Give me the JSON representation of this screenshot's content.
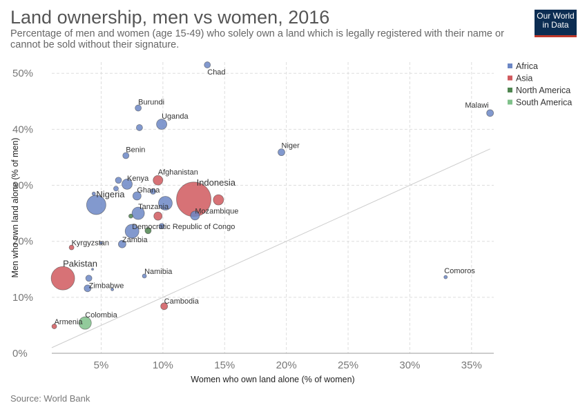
{
  "header": {
    "title": "Land ownership, men vs women, 2016",
    "subtitle": "Percentage of men and women (age 15-49) who solely own a land which is legally registered with their name or cannot be sold without their signature."
  },
  "logo": {
    "line1": "Our World",
    "line2": "in Data"
  },
  "footer": {
    "source": "Source: World Bank"
  },
  "colors": {
    "Africa": "#6c87c5",
    "Asia": "#d0595e",
    "North America": "#4f8550",
    "South America": "#7fc18a"
  },
  "chart_data": {
    "type": "scatter",
    "xlabel": "Women who own land alone (% of women)",
    "ylabel": "Men who own land alone (% of men)",
    "xlim": [
      1,
      36.8
    ],
    "ylim": [
      0,
      52
    ],
    "xticks": [
      5,
      10,
      15,
      20,
      25,
      30,
      35
    ],
    "xtick_labels": [
      "5%",
      "10%",
      "15%",
      "20%",
      "25%",
      "30%",
      "35%"
    ],
    "yticks": [
      0,
      10,
      20,
      30,
      40,
      50
    ],
    "ytick_labels": [
      "0%",
      "10%",
      "20%",
      "30%",
      "40%",
      "50%"
    ],
    "grid": true,
    "legend": {
      "position": "top-right",
      "entries": [
        "Africa",
        "Asia",
        "North America",
        "South America"
      ]
    },
    "diagonal_line": {
      "from": [
        1,
        1
      ],
      "to": [
        36.5,
        36.5
      ]
    },
    "points": [
      {
        "x": 13.6,
        "y": 51.5,
        "r": 4.5,
        "region": "Africa",
        "label": "Chad"
      },
      {
        "x": 8.0,
        "y": 43.8,
        "r": 4.5,
        "region": "Africa",
        "label": "Burundi"
      },
      {
        "x": 8.1,
        "y": 40.3,
        "r": 4.5,
        "region": "Africa",
        "label": ""
      },
      {
        "x": 9.9,
        "y": 40.9,
        "r": 7.5,
        "region": "Africa",
        "label": "Uganda"
      },
      {
        "x": 36.5,
        "y": 42.9,
        "r": 5,
        "region": "Africa",
        "label": "Malawi"
      },
      {
        "x": 7.0,
        "y": 35.3,
        "r": 4.5,
        "region": "Africa",
        "label": "Benin"
      },
      {
        "x": 19.6,
        "y": 35.9,
        "r": 5,
        "region": "Africa",
        "label": "Niger"
      },
      {
        "x": 9.6,
        "y": 30.9,
        "r": 7,
        "region": "Asia",
        "label": "Afghanistan"
      },
      {
        "x": 6.4,
        "y": 30.9,
        "r": 4.5,
        "region": "Africa",
        "label": ""
      },
      {
        "x": 7.1,
        "y": 30.2,
        "r": 7.5,
        "region": "Africa",
        "label": "Kenya"
      },
      {
        "x": 6.2,
        "y": 29.4,
        "r": 3.5,
        "region": "Africa",
        "label": ""
      },
      {
        "x": 4.4,
        "y": 28.5,
        "r": 2.5,
        "region": "Africa",
        "label": ""
      },
      {
        "x": 9.2,
        "y": 28.9,
        "r": 4,
        "region": "Africa",
        "label": ""
      },
      {
        "x": 7.9,
        "y": 28.1,
        "r": 6,
        "region": "Africa",
        "label": "Ghana"
      },
      {
        "x": 12.5,
        "y": 27.5,
        "r": 25,
        "region": "Asia",
        "label": "Indonesia",
        "big": true
      },
      {
        "x": 14.5,
        "y": 27.4,
        "r": 7.5,
        "region": "Asia",
        "label": ""
      },
      {
        "x": 4.6,
        "y": 26.5,
        "r": 14,
        "region": "Africa",
        "label": "Nigeria",
        "big": true
      },
      {
        "x": 10.2,
        "y": 26.8,
        "r": 10,
        "region": "Africa",
        "label": ""
      },
      {
        "x": 7.4,
        "y": 24.5,
        "r": 3,
        "region": "North America",
        "label": ""
      },
      {
        "x": 8.0,
        "y": 25.0,
        "r": 9,
        "region": "Africa",
        "label": "Tanzania"
      },
      {
        "x": 9.6,
        "y": 24.5,
        "r": 6,
        "region": "Asia",
        "label": ""
      },
      {
        "x": 12.6,
        "y": 24.6,
        "r": 6.5,
        "region": "Africa",
        "label": "Mozambique"
      },
      {
        "x": 9.9,
        "y": 22.7,
        "r": 4,
        "region": "Africa",
        "label": ""
      },
      {
        "x": 7.5,
        "y": 21.8,
        "r": 10,
        "region": "Africa",
        "label": "Democratic Republic of Congo"
      },
      {
        "x": 8.8,
        "y": 21.9,
        "r": 4.5,
        "region": "North America",
        "label": ""
      },
      {
        "x": 6.7,
        "y": 19.5,
        "r": 5.5,
        "region": "Africa",
        "label": "Zambia"
      },
      {
        "x": 5.0,
        "y": 19.7,
        "r": 2,
        "region": "Africa",
        "label": ""
      },
      {
        "x": 2.6,
        "y": 18.9,
        "r": 3.5,
        "region": "Asia",
        "label": "Kyrgyzstan"
      },
      {
        "x": 1.9,
        "y": 13.4,
        "r": 17,
        "region": "Asia",
        "label": "Pakistan",
        "big": true
      },
      {
        "x": 4.3,
        "y": 15.0,
        "r": 1.5,
        "region": "Africa",
        "label": ""
      },
      {
        "x": 4.0,
        "y": 13.4,
        "r": 4.5,
        "region": "Africa",
        "label": "Zimbabwe"
      },
      {
        "x": 8.5,
        "y": 13.8,
        "r": 3,
        "region": "Africa",
        "label": "Namibia"
      },
      {
        "x": 32.9,
        "y": 13.6,
        "r": 2.5,
        "region": "Africa",
        "label": "Comoros"
      },
      {
        "x": 3.9,
        "y": 11.6,
        "r": 5,
        "region": "Africa",
        "label": ""
      },
      {
        "x": 5.9,
        "y": 11.4,
        "r": 2,
        "region": "Africa",
        "label": ""
      },
      {
        "x": 10.1,
        "y": 8.4,
        "r": 5,
        "region": "Asia",
        "label": "Cambodia"
      },
      {
        "x": 3.7,
        "y": 5.4,
        "r": 9,
        "region": "South America",
        "label": "Colombia"
      },
      {
        "x": 1.2,
        "y": 4.8,
        "r": 3.5,
        "region": "Asia",
        "label": "Armenia"
      }
    ]
  }
}
